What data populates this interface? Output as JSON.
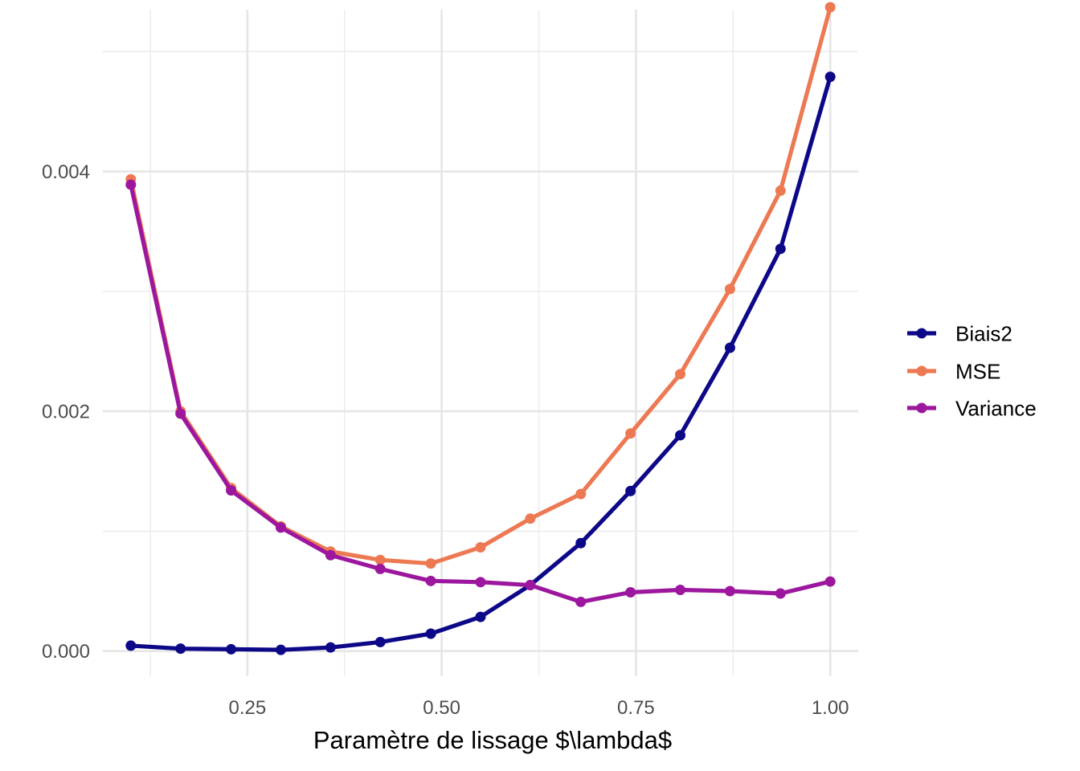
{
  "chart_data": {
    "type": "line",
    "title": "",
    "xlabel": "Paramètre de lissage $\\lambda$",
    "ylabel": "",
    "xlim": [
      0.064,
      1.036
    ],
    "ylim": [
      -0.00021,
      0.00535
    ],
    "x_ticks": [
      0.25,
      0.5,
      0.75,
      1.0
    ],
    "x_tick_labels": [
      "0.25",
      "0.50",
      "0.75",
      "1.00"
    ],
    "y_ticks": [
      0.0,
      0.002,
      0.004
    ],
    "y_tick_labels": [
      "0.000",
      "0.002",
      "0.004"
    ],
    "grid": true,
    "legend_position": "right",
    "x": [
      0.1,
      0.164,
      0.229,
      0.293,
      0.357,
      0.421,
      0.486,
      0.55,
      0.614,
      0.679,
      0.743,
      0.807,
      0.871,
      0.936,
      1.0
    ],
    "series": [
      {
        "name": "Biais2",
        "color": "#0d0887",
        "values": [
          4.5e-05,
          2e-05,
          1.5e-05,
          1e-05,
          3e-05,
          7.5e-05,
          0.000145,
          0.000285,
          0.00055,
          0.0009,
          0.001335,
          0.0018,
          0.00253,
          0.003355,
          0.00479
        ]
      },
      {
        "name": "MSE",
        "color": "#ed7953",
        "values": [
          0.003935,
          0.002,
          0.00136,
          0.00104,
          0.00083,
          0.00076,
          0.00073,
          0.000865,
          0.001105,
          0.00131,
          0.001815,
          0.00231,
          0.00302,
          0.00384,
          0.00537
        ]
      },
      {
        "name": "Variance",
        "color": "#9c179e",
        "values": [
          0.00389,
          0.00198,
          0.00134,
          0.00103,
          0.0008,
          0.000685,
          0.000585,
          0.000575,
          0.00055,
          0.00041,
          0.00049,
          0.00051,
          0.0005,
          0.00048,
          0.00058
        ]
      }
    ]
  }
}
